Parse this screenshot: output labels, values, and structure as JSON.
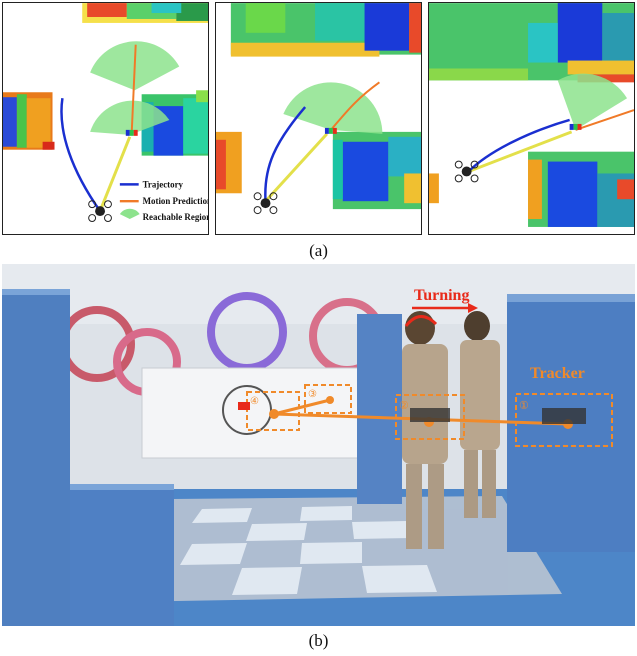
{
  "figure": {
    "caption_a": "(a)",
    "caption_b": "(b)"
  },
  "legend": {
    "trajectory": "Trajectory",
    "motion_prediction": "Motion Prediction",
    "reachable_region": "Reachable Region"
  },
  "photo": {
    "turning_label": "Turning",
    "tracker_label": "Tracker",
    "box_numbers": [
      "①",
      "②",
      "③",
      "④"
    ]
  },
  "colors": {
    "trajectory": "#1a2fd0",
    "motion_prediction": "#f07a28",
    "reachable_region": "#8de38d",
    "prediction_arrow": "#e3e04a",
    "annotation_red": "#e82a1a",
    "tracker_orange": "#f08a2a"
  }
}
